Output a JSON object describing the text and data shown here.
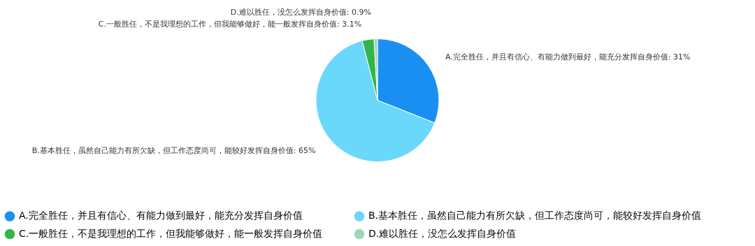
{
  "chart_data": {
    "type": "pie",
    "categories": [
      "A.完全胜任，并且有信心、有能力做到最好，能充分发挥自身价值",
      "B.基本胜任，虽然自己能力有所欠缺，但工作态度尚可，能较好发挥自身价值",
      "C.一般胜任，不是我理想的工作，但我能够做好，能一般发挥自身价值",
      "D.难以胜任，没怎么发挥自身价值"
    ],
    "values": [
      31,
      65,
      3.1,
      0.9
    ],
    "value_labels": [
      "A.完全胜任，并且有信心、有能力做到最好，能充分发挥自身价值: 31%",
      "B.基本胜任，虽然自己能力有所欠缺，但工作态度尚可，能较好发挥自身价值: 65%",
      "C.一般胜任，不是我理想的工作，但我能够做好，能一般发挥自身价值: 3.1%",
      "D.难以胜任，没怎么发挥自身价值: 0.9%"
    ],
    "colors": [
      "#1a8ff2",
      "#6ad8fb",
      "#35b44a",
      "#9ad8b8"
    ],
    "legend": "bottom"
  }
}
